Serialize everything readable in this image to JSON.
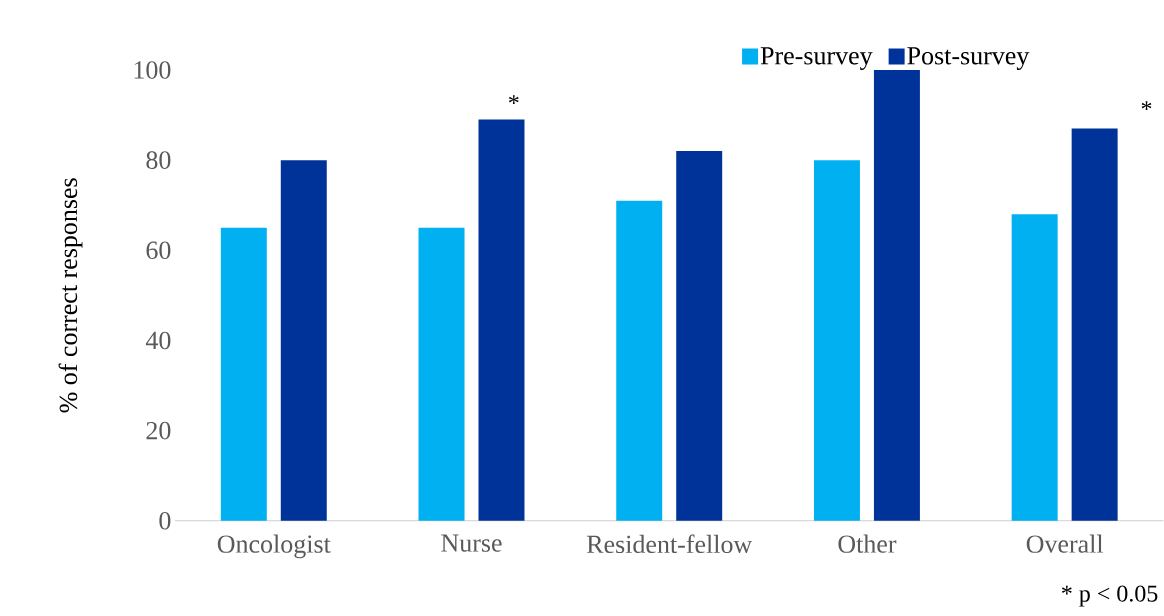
{
  "chart_data": {
    "type": "bar",
    "ylabel": "% of correct responses",
    "categories": [
      "Oncologist",
      "Nurse",
      "Resident-fellow",
      "Other",
      "Overall"
    ],
    "series": [
      {
        "name": "Pre-survey",
        "color": "#00b0f0",
        "values": [
          65,
          65,
          71,
          80,
          68
        ]
      },
      {
        "name": "Post-survey",
        "color": "#003399",
        "values": [
          80,
          89,
          82,
          100,
          87
        ]
      }
    ],
    "ylim": [
      0,
      100
    ],
    "yticks": [
      0,
      20,
      40,
      60,
      80,
      100
    ],
    "legend": "top",
    "annotations": [
      "*",
      "*",
      "* p < 0.05"
    ]
  }
}
